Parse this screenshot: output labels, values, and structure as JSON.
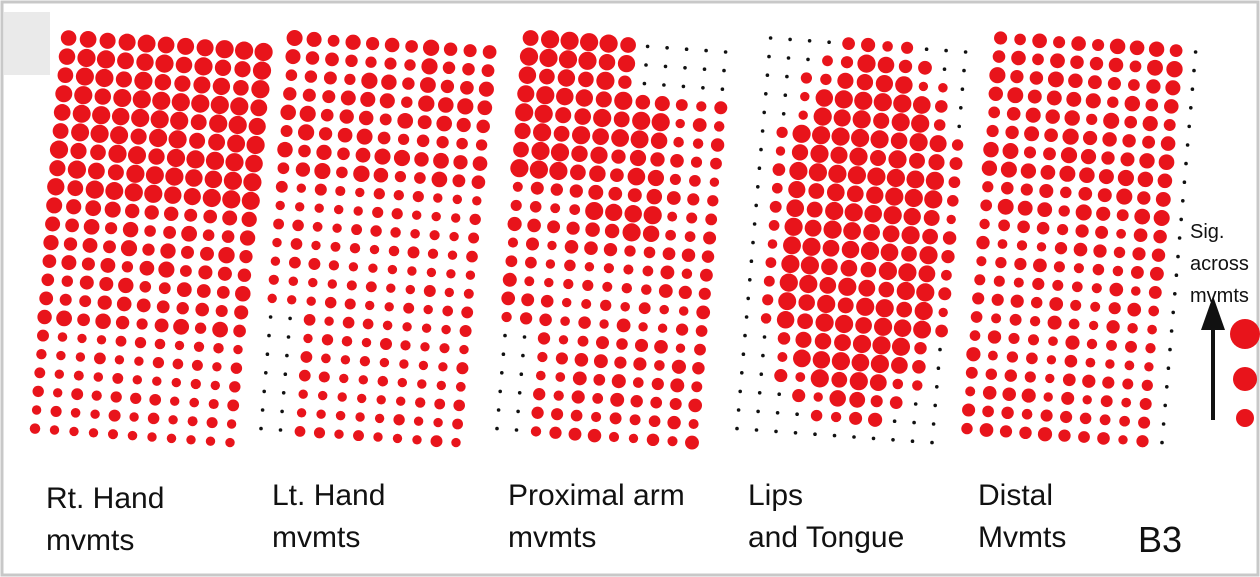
{
  "panels": [
    {
      "label": [
        "Rt. Hand",
        "mvmts"
      ]
    },
    {
      "label": [
        "Lt. Hand",
        "mvmts"
      ]
    },
    {
      "label": [
        "Proximal arm",
        "mvmts"
      ]
    },
    {
      "label": [
        "Lips",
        "and Tongue"
      ]
    },
    {
      "label": [
        "Distal",
        "Mvmts"
      ]
    }
  ],
  "legend": {
    "lines": [
      "Sig.",
      "across",
      "mvmts"
    ]
  },
  "panel_id": "B3"
}
